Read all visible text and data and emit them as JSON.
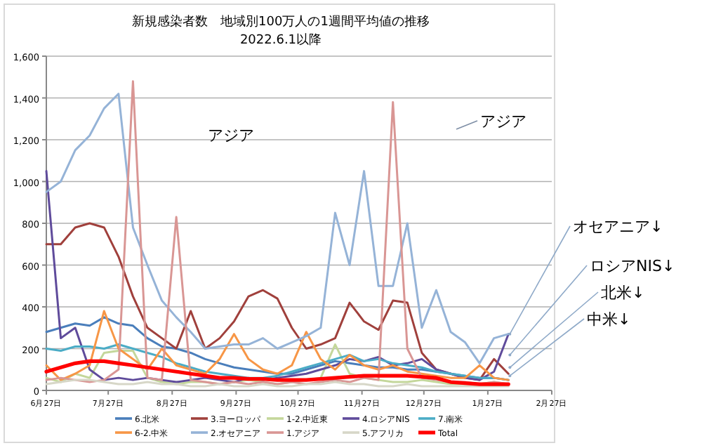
{
  "chart_data": {
    "type": "line",
    "title": "新規感染者数　地域別100万人の1週間平均値の推移",
    "subtitle": "2022.6.1以降",
    "x": [
      "2022-06-27",
      "2022-07-04",
      "2022-07-11",
      "2022-07-18",
      "2022-07-25",
      "2022-08-01",
      "2022-08-08",
      "2022-08-15",
      "2022-08-22",
      "2022-08-29",
      "2022-09-05",
      "2022-09-12",
      "2022-09-19",
      "2022-09-26",
      "2022-10-03",
      "2022-10-10",
      "2022-10-17",
      "2022-10-24",
      "2022-10-31",
      "2022-11-07",
      "2022-11-14",
      "2022-11-21",
      "2022-11-28",
      "2022-12-05",
      "2022-12-12",
      "2022-12-19",
      "2022-12-26",
      "2023-01-02",
      "2023-01-09",
      "2023-01-16",
      "2023-01-23",
      "2023-01-30",
      "2023-02-06"
    ],
    "series": [
      {
        "name": "6.北米",
        "color": "#4a7ebb",
        "values": [
          280,
          300,
          320,
          310,
          350,
          320,
          310,
          250,
          210,
          200,
          180,
          150,
          130,
          110,
          100,
          90,
          80,
          80,
          100,
          120,
          140,
          130,
          120,
          110,
          110,
          100,
          100,
          90,
          80,
          70,
          60,
          60,
          50
        ]
      },
      {
        "name": "3.ヨーロッパ",
        "color": "#a0403c",
        "values": [
          700,
          700,
          780,
          800,
          780,
          640,
          450,
          300,
          250,
          200,
          380,
          200,
          250,
          330,
          450,
          480,
          440,
          300,
          200,
          220,
          250,
          420,
          330,
          290,
          430,
          420,
          180,
          100,
          80,
          60,
          50,
          150,
          80
        ]
      },
      {
        "name": "1-2.中近東",
        "color": "#c4d79b",
        "values": [
          60,
          40,
          80,
          60,
          180,
          190,
          190,
          60,
          40,
          30,
          40,
          40,
          30,
          40,
          50,
          40,
          30,
          40,
          50,
          60,
          220,
          80,
          60,
          50,
          40,
          40,
          50,
          40,
          30,
          30,
          30,
          40,
          30
        ]
      },
      {
        "name": "4.ロシアNIS",
        "color": "#5f4b9b",
        "values": [
          1050,
          250,
          300,
          100,
          50,
          60,
          50,
          60,
          50,
          40,
          50,
          60,
          50,
          40,
          60,
          50,
          60,
          70,
          80,
          100,
          120,
          150,
          140,
          160,
          120,
          130,
          150,
          100,
          80,
          60,
          50,
          90,
          270
        ]
      },
      {
        "name": "7.南米",
        "color": "#4bacc6",
        "values": [
          200,
          190,
          210,
          210,
          200,
          220,
          200,
          180,
          160,
          130,
          110,
          90,
          80,
          70,
          60,
          60,
          70,
          90,
          110,
          130,
          150,
          170,
          140,
          150,
          130,
          120,
          110,
          90,
          80,
          70,
          60,
          60,
          50
        ]
      },
      {
        "name": "6-2.中米",
        "color": "#f79646",
        "values": [
          120,
          50,
          80,
          120,
          380,
          200,
          150,
          100,
          200,
          120,
          100,
          80,
          150,
          270,
          150,
          100,
          80,
          120,
          280,
          150,
          100,
          170,
          120,
          100,
          120,
          90,
          80,
          70,
          60,
          60,
          120,
          60,
          50
        ]
      },
      {
        "name": "2.オセアニア",
        "color": "#95b3d7",
        "values": [
          950,
          1000,
          1150,
          1220,
          1350,
          1420,
          780,
          600,
          430,
          350,
          280,
          200,
          210,
          220,
          220,
          250,
          200,
          230,
          260,
          300,
          850,
          600,
          1050,
          500,
          500,
          800,
          300,
          480,
          280,
          230,
          130,
          250,
          270
        ]
      },
      {
        "name": "1.アジア",
        "color": "#d99694",
        "values": [
          50,
          60,
          50,
          40,
          50,
          100,
          1480,
          60,
          50,
          830,
          50,
          40,
          30,
          40,
          30,
          40,
          30,
          40,
          30,
          40,
          50,
          40,
          60,
          50,
          1380,
          200,
          60,
          50,
          40,
          40,
          30,
          40,
          30
        ]
      },
      {
        "name": "5.アフリカ",
        "color": "#d7d7c8",
        "values": [
          30,
          40,
          50,
          50,
          40,
          30,
          30,
          40,
          30,
          30,
          20,
          20,
          30,
          20,
          20,
          30,
          20,
          20,
          30,
          30,
          40,
          30,
          30,
          20,
          20,
          30,
          20,
          20,
          20,
          20,
          20,
          20,
          20
        ]
      },
      {
        "name": "Total",
        "color": "#ff0000",
        "values": [
          90,
          110,
          130,
          140,
          140,
          130,
          120,
          110,
          100,
          90,
          80,
          70,
          60,
          60,
          55,
          55,
          50,
          50,
          50,
          55,
          60,
          65,
          70,
          70,
          70,
          70,
          65,
          60,
          40,
          35,
          30,
          30,
          30
        ]
      }
    ],
    "xlim": [
      "2022-06-27",
      "2023-02-27"
    ],
    "xticks": [
      {
        "value": "2022-06-27",
        "label": "6月27日"
      },
      {
        "value": "2022-07-27",
        "label": "7月27日"
      },
      {
        "value": "2022-08-27",
        "label": "8月27日"
      },
      {
        "value": "2022-09-27",
        "label": "9月27日"
      },
      {
        "value": "2022-10-27",
        "label": "10月27日"
      },
      {
        "value": "2022-11-27",
        "label": "11月27日"
      },
      {
        "value": "2022-12-27",
        "label": "12月27日"
      },
      {
        "value": "2023-01-27",
        "label": "1月27日"
      },
      {
        "value": "2023-02-27",
        "label": "2月27日"
      }
    ],
    "ylim": [
      0,
      1600
    ],
    "yticks": [
      0,
      {
        "value": 200,
        "label": "200"
      },
      {
        "value": 400,
        "label": "400"
      },
      {
        "value": 600,
        "label": "600"
      },
      {
        "value": 800,
        "label": "800"
      },
      {
        "value": 1000,
        "label": "1,000"
      },
      {
        "value": 1200,
        "label": "1,200"
      },
      {
        "value": 1400,
        "label": "1,400"
      },
      {
        "value": 1600,
        "label": "1,600"
      }
    ],
    "grid": "y",
    "legend": "bottom",
    "marker": "none",
    "line_style": "solid",
    "annotations": [
      "アジア",
      "アジア",
      {
        "text": "オセアニア↓",
        "x": "2023-02-06",
        "y": 270
      },
      {
        "text": "ロシアNIS↓",
        "x": "2023-02-06",
        "y": 170
      },
      {
        "text": "北米↓",
        "x": "2023-02-06",
        "y": 110
      },
      {
        "text": "中米↓",
        "x": "2023-02-06",
        "y": 70
      }
    ]
  }
}
